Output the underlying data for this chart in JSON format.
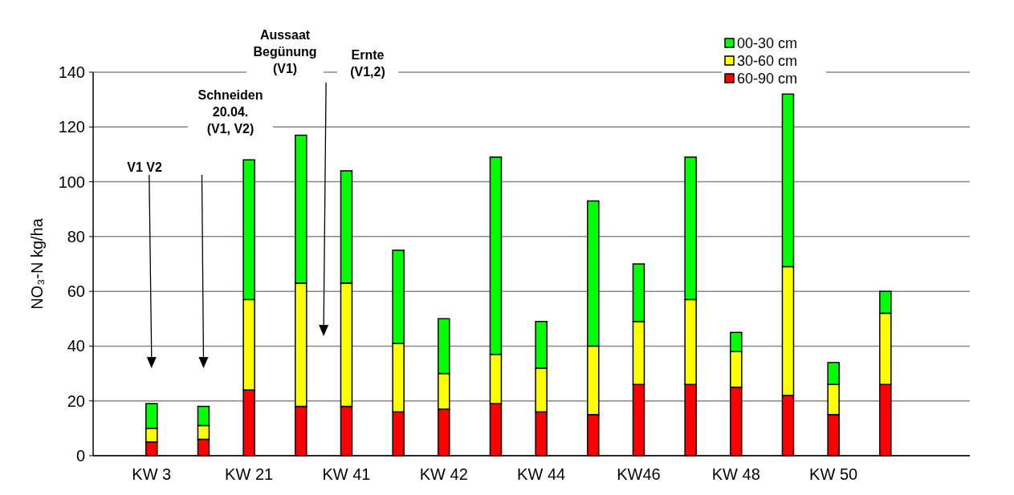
{
  "chart_data": {
    "type": "bar",
    "stacked": true,
    "ylabel": "NO₃-N kg/ha",
    "categories": [
      "KW 3",
      null,
      "KW 21",
      null,
      "KW 41",
      null,
      "KW 42",
      null,
      "KW 44",
      null,
      "KW46",
      null,
      "KW 48",
      null,
      "KW 50",
      null
    ],
    "series": [
      {
        "name": "60-90 cm",
        "color": "#ff0000",
        "values": [
          5,
          6,
          24,
          18,
          18,
          16,
          17,
          19,
          16,
          15,
          26,
          26,
          25,
          22,
          15,
          26
        ]
      },
      {
        "name": "30-60 cm",
        "color": "#ffff00",
        "values": [
          5,
          5,
          33,
          45,
          45,
          25,
          13,
          18,
          16,
          25,
          23,
          31,
          13,
          47,
          11,
          26
        ]
      },
      {
        "name": "00-30 cm",
        "color": "#00ff00",
        "values": [
          9,
          7,
          51,
          54,
          41,
          34,
          20,
          72,
          17,
          53,
          21,
          52,
          7,
          63,
          8,
          8
        ]
      }
    ],
    "ylim": [
      0,
      140
    ],
    "yticks": [
      0,
      20,
      40,
      60,
      80,
      100,
      120,
      140
    ],
    "grid": "y",
    "legend": "top right",
    "annotations": [
      "V1 V2",
      "Schneiden\n20.04.\n(V1, V2)",
      "Aussaat\nBegünung\n(V1)",
      "Ernte\n(V1,2)"
    ]
  }
}
